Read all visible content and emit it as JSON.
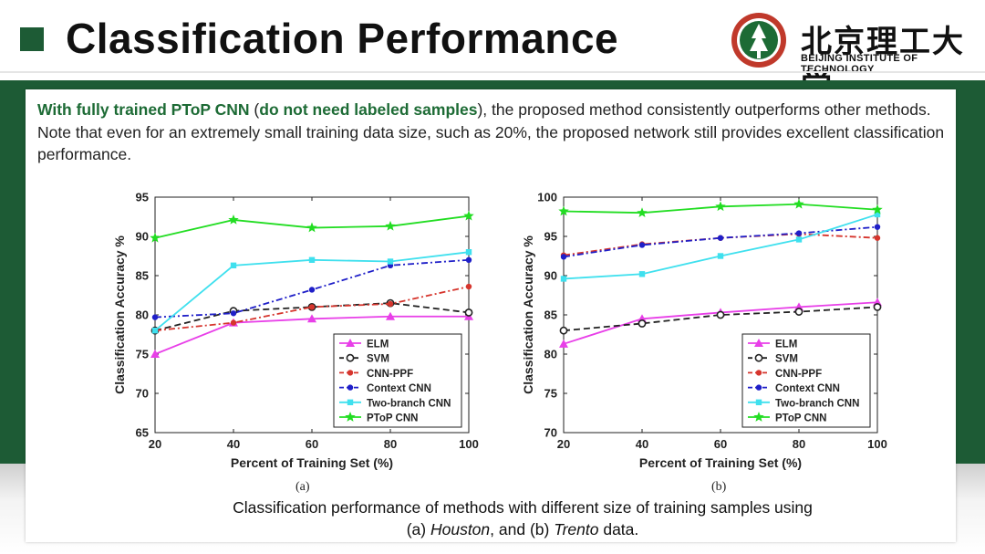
{
  "slide": {
    "title": "Classification Performance",
    "logo": {
      "cn": "北京理工大学",
      "en": "BEIJING INSTITUTE OF TECHNOLOGY",
      "seal_text": "北京理工大学"
    },
    "intro": {
      "hl1": "With fully trained PToP CNN",
      "p1": " (",
      "hl2": "do not need labeled samples",
      "p2": "), the proposed method consistently outperforms other methods. Note that even for an extremely small training data size, such as 20%, the proposed network still provides excellent classification performance."
    },
    "caption": {
      "line1": "Classification performance of methods with different size of training samples using",
      "pre": "(a) ",
      "ds1": "Houston",
      "mid": ", and (b) ",
      "ds2": "Trento",
      "post": " data."
    }
  },
  "colors": {
    "green_band": "#1d5b35",
    "ELM": "#e83fe8",
    "SVM": "#222222",
    "CNN-PPF": "#d6352d",
    "Context CNN": "#1f1fc8",
    "Two-branch CNN": "#3fe0ee",
    "PToP CNN": "#22dd22"
  },
  "chart_data": [
    {
      "type": "line",
      "panel_label": "(a)",
      "xlabel": "Percent of Training Set (%)",
      "ylabel": "Classification Accuracy %",
      "x": [
        20,
        40,
        60,
        80,
        100
      ],
      "xlim": [
        20,
        100
      ],
      "ylim": [
        65,
        95
      ],
      "xticks": [
        20,
        40,
        60,
        80,
        100
      ],
      "yticks": [
        65,
        70,
        75,
        80,
        85,
        90,
        95
      ],
      "legend_position": "bottom-right",
      "series": [
        {
          "name": "ELM",
          "marker": "triangle",
          "dash": "solid",
          "values": [
            75.0,
            79.0,
            79.5,
            79.8,
            79.8
          ]
        },
        {
          "name": "SVM",
          "marker": "circle-open",
          "dash": "dashed",
          "values": [
            78.0,
            80.5,
            81.0,
            81.5,
            80.3
          ]
        },
        {
          "name": "CNN-PPF",
          "marker": "dot",
          "dash": "dashdot",
          "values": [
            78.0,
            79.0,
            81.0,
            81.4,
            83.6
          ]
        },
        {
          "name": "Context CNN",
          "marker": "dot",
          "dash": "dashdot",
          "values": [
            79.7,
            80.2,
            83.2,
            86.3,
            87.0
          ]
        },
        {
          "name": "Two-branch CNN",
          "marker": "square",
          "dash": "solid",
          "values": [
            78.0,
            86.3,
            87.0,
            86.8,
            88.0
          ]
        },
        {
          "name": "PToP CNN",
          "marker": "star",
          "dash": "solid",
          "values": [
            89.8,
            92.1,
            91.1,
            91.3,
            92.6
          ]
        }
      ]
    },
    {
      "type": "line",
      "panel_label": "(b)",
      "xlabel": "Percent of Training Set (%)",
      "ylabel": "Classification Accuracy %",
      "x": [
        20,
        40,
        60,
        80,
        100
      ],
      "xlim": [
        20,
        100
      ],
      "ylim": [
        70,
        100
      ],
      "xticks": [
        20,
        40,
        60,
        80,
        100
      ],
      "yticks": [
        70,
        75,
        80,
        85,
        90,
        95,
        100
      ],
      "legend_position": "bottom-right",
      "series": [
        {
          "name": "ELM",
          "marker": "triangle",
          "dash": "solid",
          "values": [
            81.3,
            84.5,
            85.3,
            86.0,
            86.6
          ]
        },
        {
          "name": "SVM",
          "marker": "circle-open",
          "dash": "dashed",
          "values": [
            83.0,
            83.9,
            85.0,
            85.4,
            86.0
          ]
        },
        {
          "name": "CNN-PPF",
          "marker": "dot",
          "dash": "dashdot",
          "values": [
            92.6,
            94.0,
            94.8,
            95.3,
            94.8
          ]
        },
        {
          "name": "Context CNN",
          "marker": "dot",
          "dash": "dashdot",
          "values": [
            92.4,
            93.9,
            94.8,
            95.4,
            96.2
          ]
        },
        {
          "name": "Two-branch CNN",
          "marker": "square",
          "dash": "solid",
          "values": [
            89.6,
            90.2,
            92.5,
            94.6,
            97.8
          ]
        },
        {
          "name": "PToP CNN",
          "marker": "star",
          "dash": "solid",
          "values": [
            98.2,
            98.0,
            98.8,
            99.1,
            98.4
          ]
        }
      ]
    }
  ]
}
